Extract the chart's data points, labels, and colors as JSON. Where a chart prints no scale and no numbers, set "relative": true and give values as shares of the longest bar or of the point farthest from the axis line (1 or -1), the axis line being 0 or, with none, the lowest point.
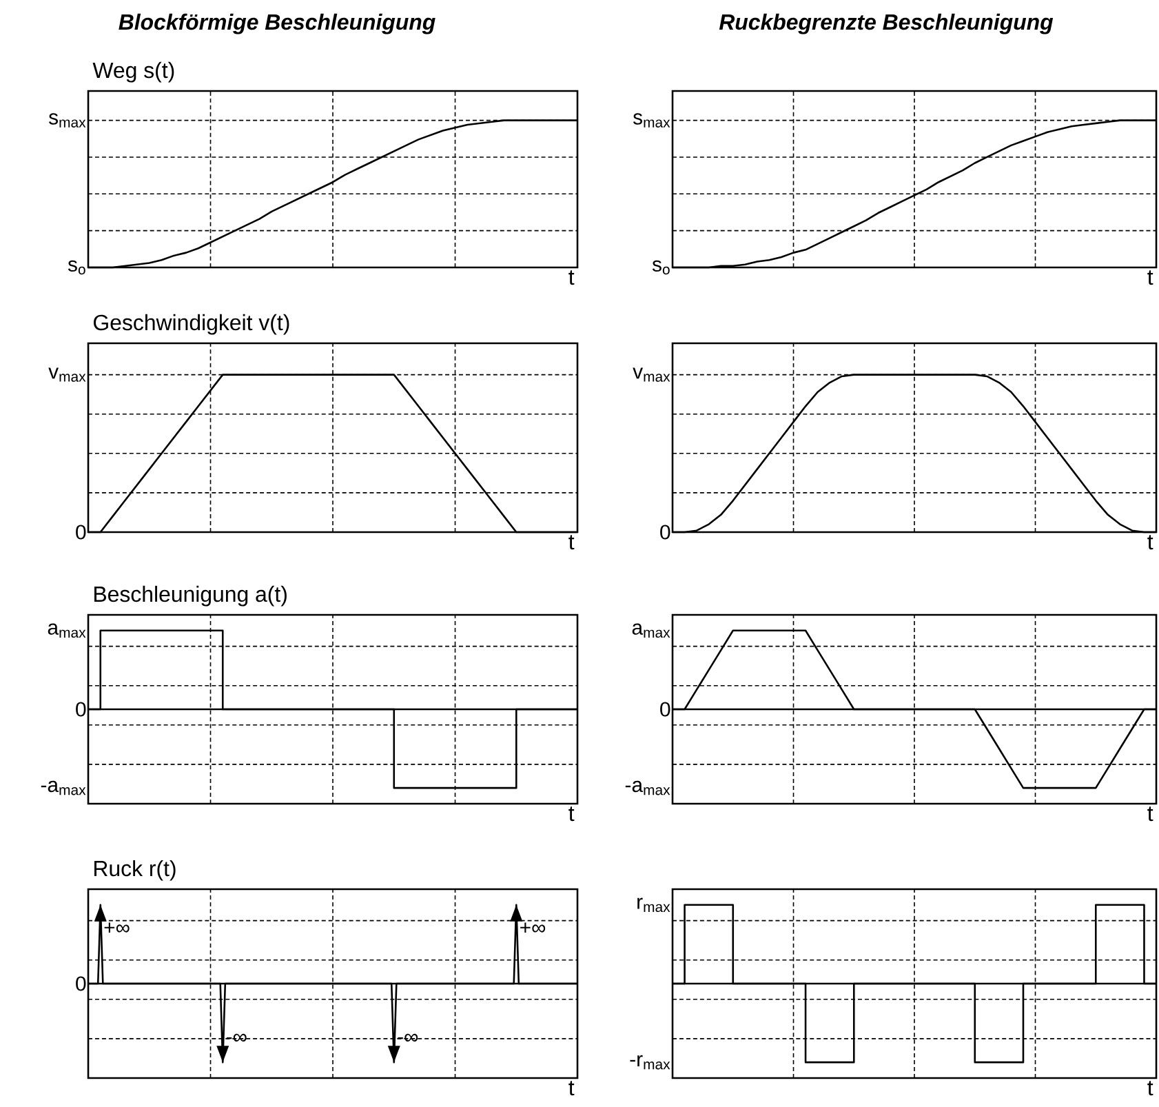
{
  "chart_data": [
    {
      "type": "line",
      "relative": true,
      "title": "Blockförmige Beschleunigung",
      "subtitle": "Weg s(t)",
      "xlabel": "t",
      "grid": true,
      "categories": [
        null,
        null,
        null,
        null,
        null,
        null,
        null,
        null,
        null,
        null,
        null,
        null,
        null,
        null,
        null,
        null,
        null,
        null,
        null,
        null,
        null,
        null,
        null,
        null,
        null,
        null,
        null,
        null,
        null,
        null,
        null,
        null,
        null,
        null,
        null,
        null,
        null,
        null,
        null,
        null,
        null
      ],
      "annotations": [
        "s$_{max}$",
        "s$_{o}$"
      ],
      "series": [
        {
          "color": "#000000",
          "values": [
            0,
            0,
            0,
            0.01,
            0.02,
            0.03,
            0.05,
            0.08,
            0.1,
            0.13,
            0.17,
            0.21,
            0.25,
            0.29,
            0.33,
            0.38,
            0.42,
            0.46,
            0.5,
            0.54,
            0.58,
            0.63,
            0.67,
            0.71,
            0.75,
            0.79,
            0.83,
            0.87,
            0.9,
            0.93,
            0.95,
            0.97,
            0.98,
            0.99,
            1,
            1,
            1,
            1,
            1,
            1,
            1
          ]
        }
      ]
    },
    {
      "type": "line",
      "relative": true,
      "title": "Ruckbegrenzte Beschleunigung",
      "xlabel": "t",
      "grid": true,
      "categories": [
        null,
        null,
        null,
        null,
        null,
        null,
        null,
        null,
        null,
        null,
        null,
        null,
        null,
        null,
        null,
        null,
        null,
        null,
        null,
        null,
        null,
        null,
        null,
        null,
        null,
        null,
        null,
        null,
        null,
        null,
        null,
        null,
        null,
        null,
        null,
        null,
        null,
        null,
        null,
        null,
        null
      ],
      "annotations": [
        "s$_{max}$",
        "s$_{o}$"
      ],
      "series": [
        {
          "color": "#000000",
          "values": [
            0,
            0,
            0,
            0,
            0.01,
            0.01,
            0.02,
            0.04,
            0.05,
            0.07,
            0.1,
            0.12,
            0.16,
            0.2,
            0.24,
            0.28,
            0.32,
            0.37,
            0.41,
            0.45,
            0.49,
            0.53,
            0.58,
            0.62,
            0.66,
            0.71,
            0.75,
            0.79,
            0.83,
            0.86,
            0.89,
            0.92,
            0.94,
            0.96,
            0.97,
            0.98,
            0.99,
            1,
            1,
            1,
            1
          ]
        }
      ]
    },
    {
      "type": "line",
      "relative": true,
      "title": "Geschwindigkeit v(t)",
      "xlabel": "t",
      "grid": true,
      "categories": [
        null,
        null,
        null,
        null,
        null,
        null,
        null,
        null,
        null,
        null,
        null,
        null,
        null,
        null,
        null,
        null,
        null,
        null,
        null,
        null,
        null,
        null,
        null,
        null,
        null,
        null,
        null,
        null,
        null,
        null,
        null,
        null,
        null,
        null,
        null,
        null,
        null,
        null,
        null,
        null,
        null
      ],
      "annotations": [
        "v$_{max}$",
        "0"
      ],
      "series": [
        {
          "color": "#000000",
          "values": [
            0,
            0,
            0.1,
            0.2,
            0.3,
            0.4,
            0.5,
            0.6,
            0.7,
            0.8,
            0.9,
            1,
            1,
            1,
            1,
            1,
            1,
            1,
            1,
            1,
            1,
            1,
            1,
            1,
            1,
            1,
            0.9,
            0.8,
            0.7,
            0.6,
            0.5,
            0.4,
            0.3,
            0.2,
            0.1,
            0,
            0,
            0,
            0,
            0,
            0
          ]
        }
      ]
    },
    {
      "type": "line",
      "relative": true,
      "xlabel": "t",
      "grid": true,
      "categories": [
        null,
        null,
        null,
        null,
        null,
        null,
        null,
        null,
        null,
        null,
        null,
        null,
        null,
        null,
        null,
        null,
        null,
        null,
        null,
        null,
        null,
        null,
        null,
        null,
        null,
        null,
        null,
        null,
        null,
        null,
        null,
        null,
        null,
        null,
        null,
        null,
        null,
        null,
        null,
        null,
        null
      ],
      "annotations": [
        "v$_{max}$",
        "0"
      ],
      "series": [
        {
          "color": "#000000",
          "values": [
            0,
            0,
            0.01,
            0.05,
            0.11,
            0.2,
            0.3,
            0.4,
            0.5,
            0.6,
            0.7,
            0.8,
            0.89,
            0.95,
            0.99,
            1,
            1,
            1,
            1,
            1,
            1,
            1,
            1,
            1,
            1,
            1,
            0.99,
            0.95,
            0.89,
            0.8,
            0.7,
            0.6,
            0.5,
            0.4,
            0.3,
            0.2,
            0.11,
            0.05,
            0.01,
            0,
            0
          ]
        }
      ]
    },
    {
      "type": "step",
      "relative": true,
      "title": "Beschleunigung a(t)",
      "xlabel": "t",
      "grid": true,
      "categories": [
        null,
        null,
        null,
        null,
        null,
        null,
        null,
        null,
        null,
        null,
        null,
        null,
        null,
        null,
        null,
        null,
        null,
        null,
        null,
        null,
        null,
        null,
        null,
        null,
        null,
        null,
        null,
        null,
        null,
        null,
        null,
        null,
        null,
        null,
        null,
        null,
        null,
        null,
        null,
        null,
        null
      ],
      "annotations": [
        "a$_{max}$",
        "0",
        "-a$_{max}$"
      ],
      "series": [
        {
          "color": "#000000",
          "values": [
            0,
            1,
            1,
            1,
            1,
            1,
            1,
            1,
            1,
            1,
            1,
            0,
            0,
            0,
            0,
            0,
            0,
            0,
            0,
            0,
            0,
            0,
            0,
            0,
            0,
            -1,
            -1,
            -1,
            -1,
            -1,
            -1,
            -1,
            -1,
            -1,
            -1,
            0,
            0,
            0,
            0,
            0,
            0
          ]
        }
      ]
    },
    {
      "type": "line",
      "relative": true,
      "xlabel": "t",
      "grid": true,
      "categories": [
        null,
        null,
        null,
        null,
        null,
        null,
        null,
        null,
        null,
        null,
        null,
        null,
        null,
        null,
        null,
        null,
        null,
        null,
        null,
        null,
        null,
        null,
        null,
        null,
        null,
        null,
        null,
        null,
        null,
        null,
        null,
        null,
        null,
        null,
        null,
        null,
        null,
        null,
        null,
        null,
        null
      ],
      "annotations": [
        "a$_{max}$",
        "0",
        "-a$_{max}$"
      ],
      "series": [
        {
          "color": "#000000",
          "values": [
            0,
            0,
            0.25,
            0.5,
            0.75,
            1,
            1,
            1,
            1,
            1,
            1,
            1,
            0.75,
            0.5,
            0.25,
            0,
            0,
            0,
            0,
            0,
            0,
            0,
            0,
            0,
            0,
            0,
            -0.25,
            -0.5,
            -0.75,
            -1,
            -1,
            -1,
            -1,
            -1,
            -1,
            -1,
            -0.75,
            -0.5,
            -0.25,
            0,
            0
          ]
        }
      ]
    },
    {
      "type": "line",
      "relative": true,
      "title": "Ruck r(t)",
      "xlabel": "t",
      "grid": true,
      "categories": [
        null,
        null,
        null,
        null,
        null,
        null,
        null,
        null,
        null,
        null,
        null,
        null,
        null,
        null,
        null,
        null,
        null,
        null,
        null,
        null,
        null,
        null,
        null,
        null,
        null,
        null,
        null,
        null,
        null,
        null,
        null,
        null,
        null,
        null,
        null,
        null,
        null,
        null,
        null,
        null,
        null,
        null,
        null,
        null,
        null,
        null,
        null,
        null,
        null,
        null,
        null,
        null,
        null,
        null,
        null,
        null,
        null,
        null,
        null,
        null,
        null,
        null,
        null,
        null,
        null,
        null,
        null,
        null,
        null,
        null,
        null,
        null,
        null,
        null,
        null,
        null,
        null,
        null,
        null,
        null,
        null,
        null,
        null,
        null,
        null,
        null,
        null,
        null,
        null,
        null,
        null,
        null,
        null,
        null,
        null,
        null,
        null,
        null,
        null,
        null,
        null,
        null,
        null,
        null,
        null,
        null,
        null,
        null,
        null,
        null,
        null,
        null,
        null,
        null,
        null,
        null,
        null,
        null,
        null,
        null,
        null,
        null,
        null,
        null,
        null,
        null,
        null,
        null,
        null,
        null,
        null,
        null,
        null,
        null,
        null,
        null,
        null,
        null,
        null,
        null,
        null,
        null,
        null,
        null,
        null,
        null,
        null,
        null,
        null,
        null,
        null,
        null,
        null,
        null,
        null,
        null,
        null,
        null,
        null,
        null,
        null,
        null,
        null,
        null,
        null,
        null,
        null,
        null,
        null,
        null,
        null,
        null,
        null,
        null,
        null,
        null,
        null,
        null,
        null,
        null,
        null,
        null,
        null,
        null,
        null,
        null,
        null,
        null,
        null,
        null,
        null,
        null,
        null,
        null,
        null,
        null,
        null,
        null,
        null,
        null,
        null
      ],
      "annotations": [
        "0",
        "+∞",
        "-∞",
        "-∞",
        "+∞"
      ],
      "series": [
        {
          "color": "#000000",
          "values": [
            0,
            0,
            0,
            0,
            0,
            1,
            0,
            0,
            0,
            0,
            0,
            0,
            0,
            0,
            0,
            0,
            0,
            0,
            0,
            0,
            0,
            0,
            0,
            0,
            0,
            0,
            0,
            0,
            0,
            0,
            0,
            0,
            0,
            0,
            0,
            0,
            0,
            0,
            0,
            0,
            0,
            0,
            0,
            0,
            0,
            0,
            0,
            0,
            0,
            0,
            0,
            0,
            0,
            0,
            0,
            -1,
            0,
            0,
            0,
            0,
            0,
            0,
            0,
            0,
            0,
            0,
            0,
            0,
            0,
            0,
            0,
            0,
            0,
            0,
            0,
            0,
            0,
            0,
            0,
            0,
            0,
            0,
            0,
            0,
            0,
            0,
            0,
            0,
            0,
            0,
            0,
            0,
            0,
            0,
            0,
            0,
            0,
            0,
            0,
            0,
            0,
            0,
            0,
            0,
            0,
            0,
            0,
            0,
            0,
            0,
            0,
            0,
            0,
            0,
            0,
            0,
            0,
            0,
            0,
            0,
            0,
            0,
            0,
            0,
            0,
            -1,
            0,
            0,
            0,
            0,
            0,
            0,
            0,
            0,
            0,
            0,
            0,
            0,
            0,
            0,
            0,
            0,
            0,
            0,
            0,
            0,
            0,
            0,
            0,
            0,
            0,
            0,
            0,
            0,
            0,
            0,
            0,
            0,
            0,
            0,
            0,
            0,
            0,
            0,
            0,
            0,
            0,
            0,
            0,
            0,
            0,
            0,
            0,
            0,
            0,
            1,
            0,
            0,
            0,
            0,
            0,
            0,
            0,
            0,
            0,
            0,
            0,
            0,
            0,
            0,
            0,
            0,
            0,
            0,
            0,
            0,
            0,
            0,
            0,
            0,
            0
          ]
        }
      ]
    },
    {
      "type": "step",
      "relative": true,
      "xlabel": "t",
      "grid": true,
      "categories": [
        null,
        null,
        null,
        null,
        null,
        null,
        null,
        null,
        null,
        null,
        null,
        null,
        null,
        null,
        null,
        null,
        null,
        null,
        null,
        null,
        null,
        null,
        null,
        null,
        null,
        null,
        null,
        null,
        null,
        null,
        null,
        null,
        null,
        null,
        null,
        null,
        null,
        null,
        null,
        null,
        null
      ],
      "annotations": [
        "r$_{max}$",
        "-r$_{max}$"
      ],
      "series": [
        {
          "color": "#000000",
          "values": [
            0,
            1,
            1,
            1,
            1,
            0,
            0,
            0,
            0,
            0,
            0,
            -1,
            -1,
            -1,
            -1,
            0,
            0,
            0,
            0,
            0,
            0,
            0,
            0,
            0,
            0,
            -1,
            -1,
            -1,
            -1,
            0,
            0,
            0,
            0,
            0,
            0,
            1,
            1,
            1,
            1,
            0,
            0
          ]
        }
      ]
    }
  ]
}
